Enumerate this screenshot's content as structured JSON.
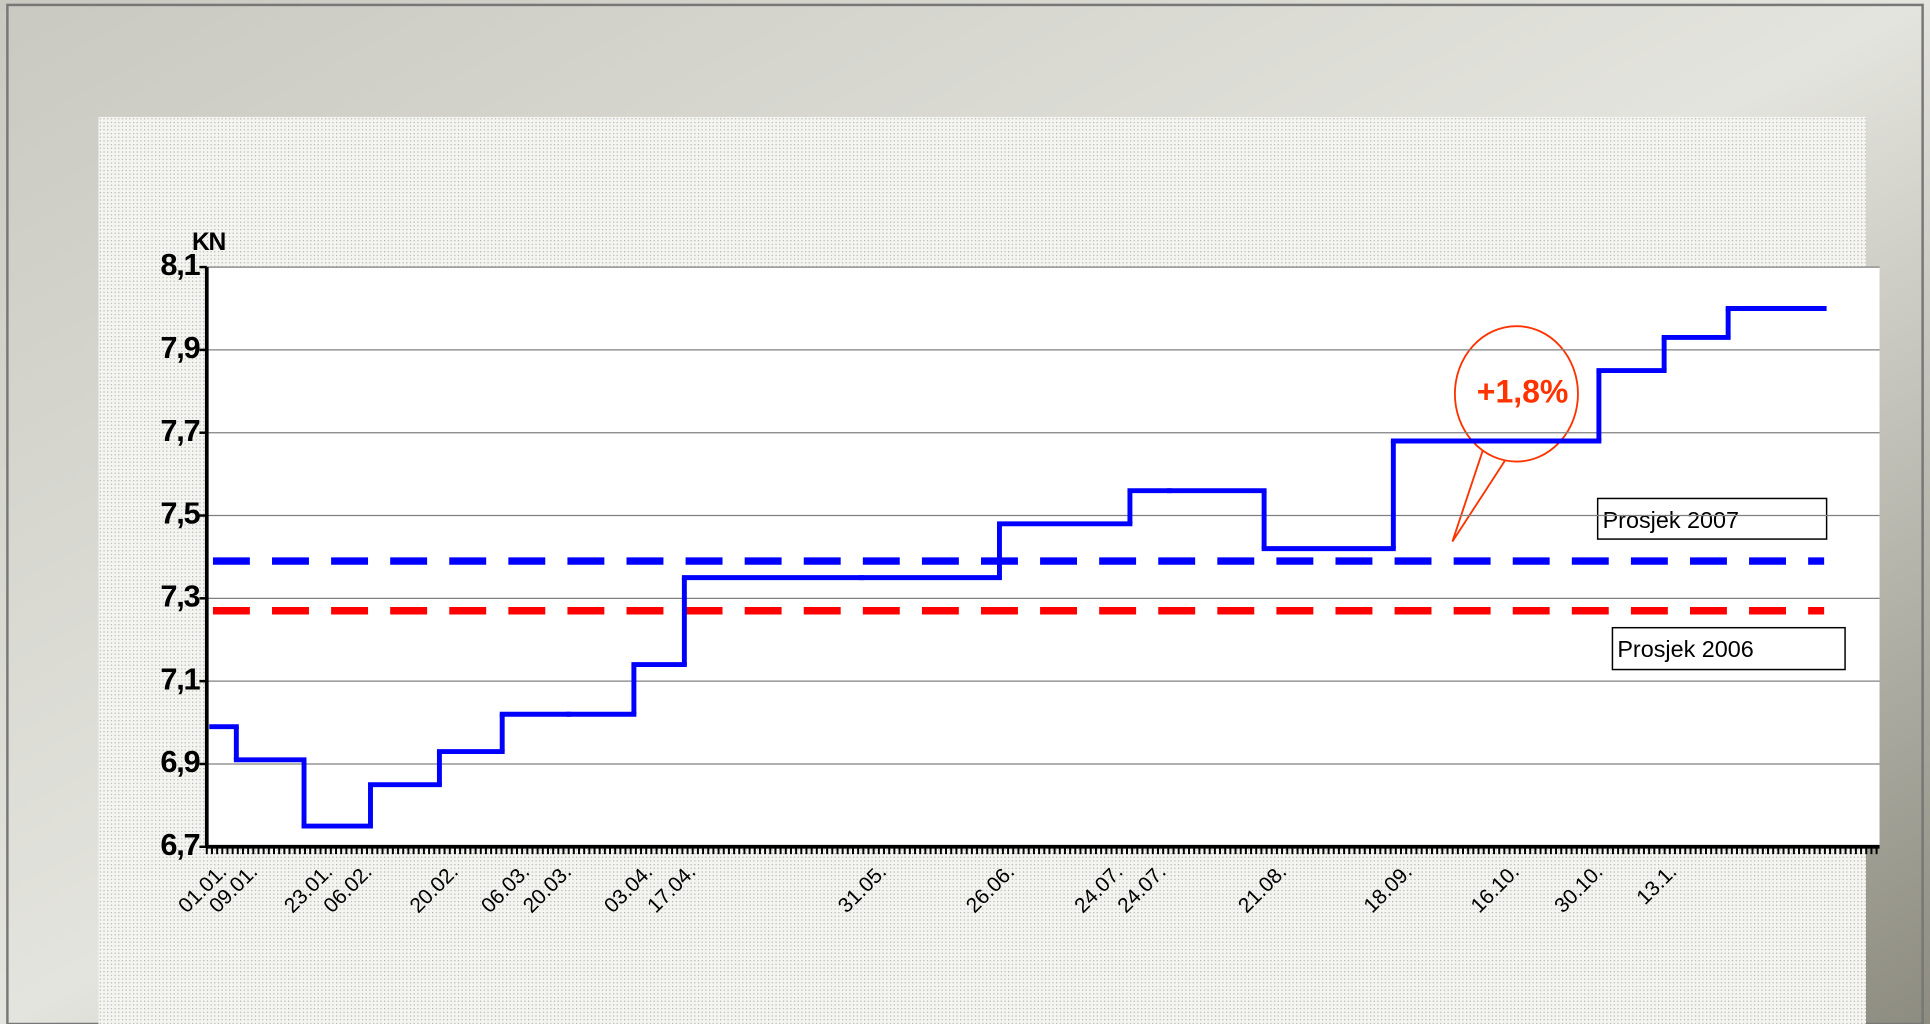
{
  "chart_data": {
    "type": "step",
    "y_label": "KN",
    "categories": [
      "01.01.",
      "09.01.",
      "23.01.",
      "06.02.",
      "20.02.",
      "06.03.",
      "20.03.",
      "03.04.",
      "17.04.",
      "31.05.",
      "26.06.",
      "24.07.",
      "24.07.",
      "21.08.",
      "18.09.",
      "16.10.",
      "30.10.",
      "13.1.",
      null
    ],
    "values": [
      6.99,
      6.91,
      6.75,
      6.85,
      6.93,
      7.02,
      7.02,
      7.14,
      7.35,
      7.35,
      7.48,
      7.56,
      7.56,
      7.42,
      7.68,
      7.68,
      7.85,
      7.93,
      8.0
    ],
    "color": "#0000ff",
    "reference_lines": [
      {
        "name": "Prosjek 2007",
        "value": 7.39,
        "color": "#0000ff"
      },
      {
        "name": "Prosjek 2006",
        "value": 7.27,
        "color": "#ff0000"
      }
    ],
    "annotation": {
      "text": "+1,8%",
      "color": "#ff3300"
    },
    "ylim": [
      6.7,
      8.1
    ],
    "yticks": [
      {
        "value": 6.7,
        "label": "6,7"
      },
      {
        "value": 6.9,
        "label": "6,9"
      },
      {
        "value": 7.1,
        "label": "7,1"
      },
      {
        "value": 7.3,
        "label": "7,3"
      },
      {
        "value": 7.5,
        "label": "7,5"
      },
      {
        "value": 7.7,
        "label": "7,7"
      },
      {
        "value": 7.9,
        "label": "7,9"
      },
      {
        "value": 8.1,
        "label": "8,1"
      }
    ],
    "grid": true
  }
}
